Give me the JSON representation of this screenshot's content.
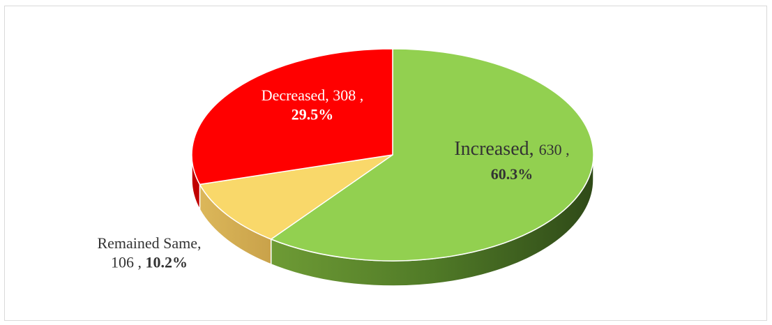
{
  "chart_data": {
    "type": "pie",
    "style": "3d",
    "title": "",
    "legend": "none",
    "slices": [
      {
        "name": "Increased",
        "value": 630,
        "percent": "60.3%",
        "color": "#92d050",
        "side_color": "#4f7a28",
        "label_color": "#333333"
      },
      {
        "name": "Remained Same",
        "value": 106,
        "percent": "10.2%",
        "color": "#f9d86a",
        "side_color": "#d4b052",
        "label_color": "#333333"
      },
      {
        "name": "Decreased",
        "value": 308,
        "percent": "29.5%",
        "color": "#ff0000",
        "side_color": "#c00000",
        "label_color": "#ffffff"
      }
    ]
  }
}
